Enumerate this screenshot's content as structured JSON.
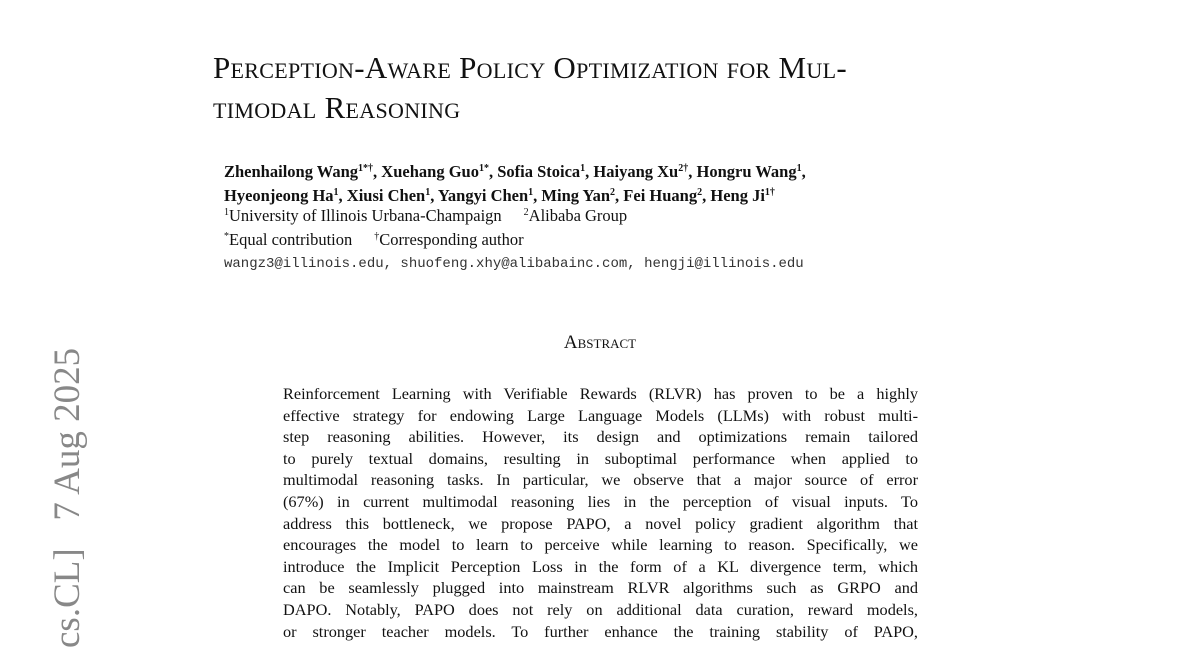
{
  "sidebar": "cs.CL]   7 Aug 2025",
  "title": [
    "Perception-Aware Policy Optimization for Mul-",
    "timodal Reasoning"
  ],
  "authors": [
    [
      {
        "name": "Zhenhailong Wang",
        "sup": "1*†",
        "punct": ","
      },
      {
        "name": "Xuehang Guo",
        "sup": "1*",
        "punct": ","
      },
      {
        "name": "Sofia Stoica",
        "sup": "1",
        "punct": ","
      },
      {
        "name": "Haiyang Xu",
        "sup": "2†",
        "punct": ","
      },
      {
        "name": "Hongru Wang",
        "sup": "1",
        "punct": ","
      }
    ],
    [
      {
        "name": "Hyeonjeong Ha",
        "sup": "1",
        "punct": ","
      },
      {
        "name": "Xiusi Chen",
        "sup": "1",
        "punct": ","
      },
      {
        "name": "Yangyi Chen",
        "sup": "1",
        "punct": ","
      },
      {
        "name": "Ming Yan",
        "sup": "2",
        "punct": ","
      },
      {
        "name": "Fei Huang",
        "sup": "2",
        "punct": ","
      },
      {
        "name": "Heng Ji",
        "sup": "1†"
      }
    ]
  ],
  "affiliations": [
    {
      "sup": "1",
      "text": "University of Illinois Urbana-Champaign"
    },
    {
      "sup": "2",
      "text": "Alibaba Group"
    }
  ],
  "notes": [
    {
      "sup": "*",
      "text": "Equal contribution"
    },
    {
      "sup": "†",
      "text": "Corresponding author"
    }
  ],
  "emails": "wangz3@illinois.edu, shuofeng.xhy@alibabainc.com, hengji@illinois.edu",
  "abstract": {
    "heading": "Abstract",
    "lines": [
      "Reinforcement Learning with Verifiable Rewards (RLVR) has proven to be a highly",
      "effective strategy for endowing Large Language Models (LLMs) with robust multi-",
      "step reasoning abilities.  However, its design and optimizations remain tailored",
      "to purely textual domains, resulting in suboptimal performance when applied to",
      "multimodal reasoning tasks. In particular, we observe that a major source of error",
      "(67%) in current multimodal reasoning lies in the perception of visual inputs. To",
      "address this bottleneck, we propose PAPO, a novel policy gradient algorithm that",
      "encourages the model to learn to perceive while learning to reason. Specifically, we",
      "introduce the Implicit Perception Loss in the form of a KL divergence term, which",
      "can be seamlessly plugged into mainstream RLVR algorithms such as GRPO and",
      "DAPO. Notably, PAPO does not rely on additional data curation, reward models,",
      "or stronger teacher models.  To further enhance the training stability of PAPO,"
    ]
  }
}
